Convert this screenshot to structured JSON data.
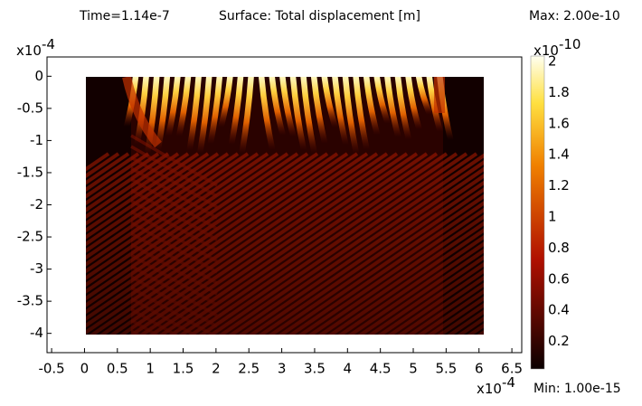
{
  "header": {
    "time": "Time=1.14e-7",
    "surface": "Surface: Total displacement [m]",
    "max": "Max: 2.00e-10",
    "min": "Min: 1.00e-15"
  },
  "chart_data": {
    "type": "surface",
    "xlim": [
      -0.57,
      6.65
    ],
    "ylim": [
      -4.3,
      0.3
    ],
    "xticks": [
      -0.5,
      0,
      0.5,
      1,
      1.5,
      2,
      2.5,
      3,
      3.5,
      4,
      4.5,
      5,
      5.5,
      6,
      6.5
    ],
    "yticks": [
      0,
      -0.5,
      -1,
      -1.5,
      -2,
      -2.5,
      -3,
      -3.5,
      -4
    ],
    "x_scale": {
      "base": "x10",
      "exponent": "-4"
    },
    "y_scale": {
      "base": "x10",
      "exponent": "-4"
    },
    "colorbar": {
      "lim": [
        0,
        2
      ],
      "ticks": [
        0.2,
        0.4,
        0.6,
        0.8,
        1,
        1.2,
        1.4,
        1.6,
        1.8,
        2
      ],
      "scale": {
        "base": "x10",
        "exponent": "-10"
      },
      "colormap": "hot"
    }
  }
}
